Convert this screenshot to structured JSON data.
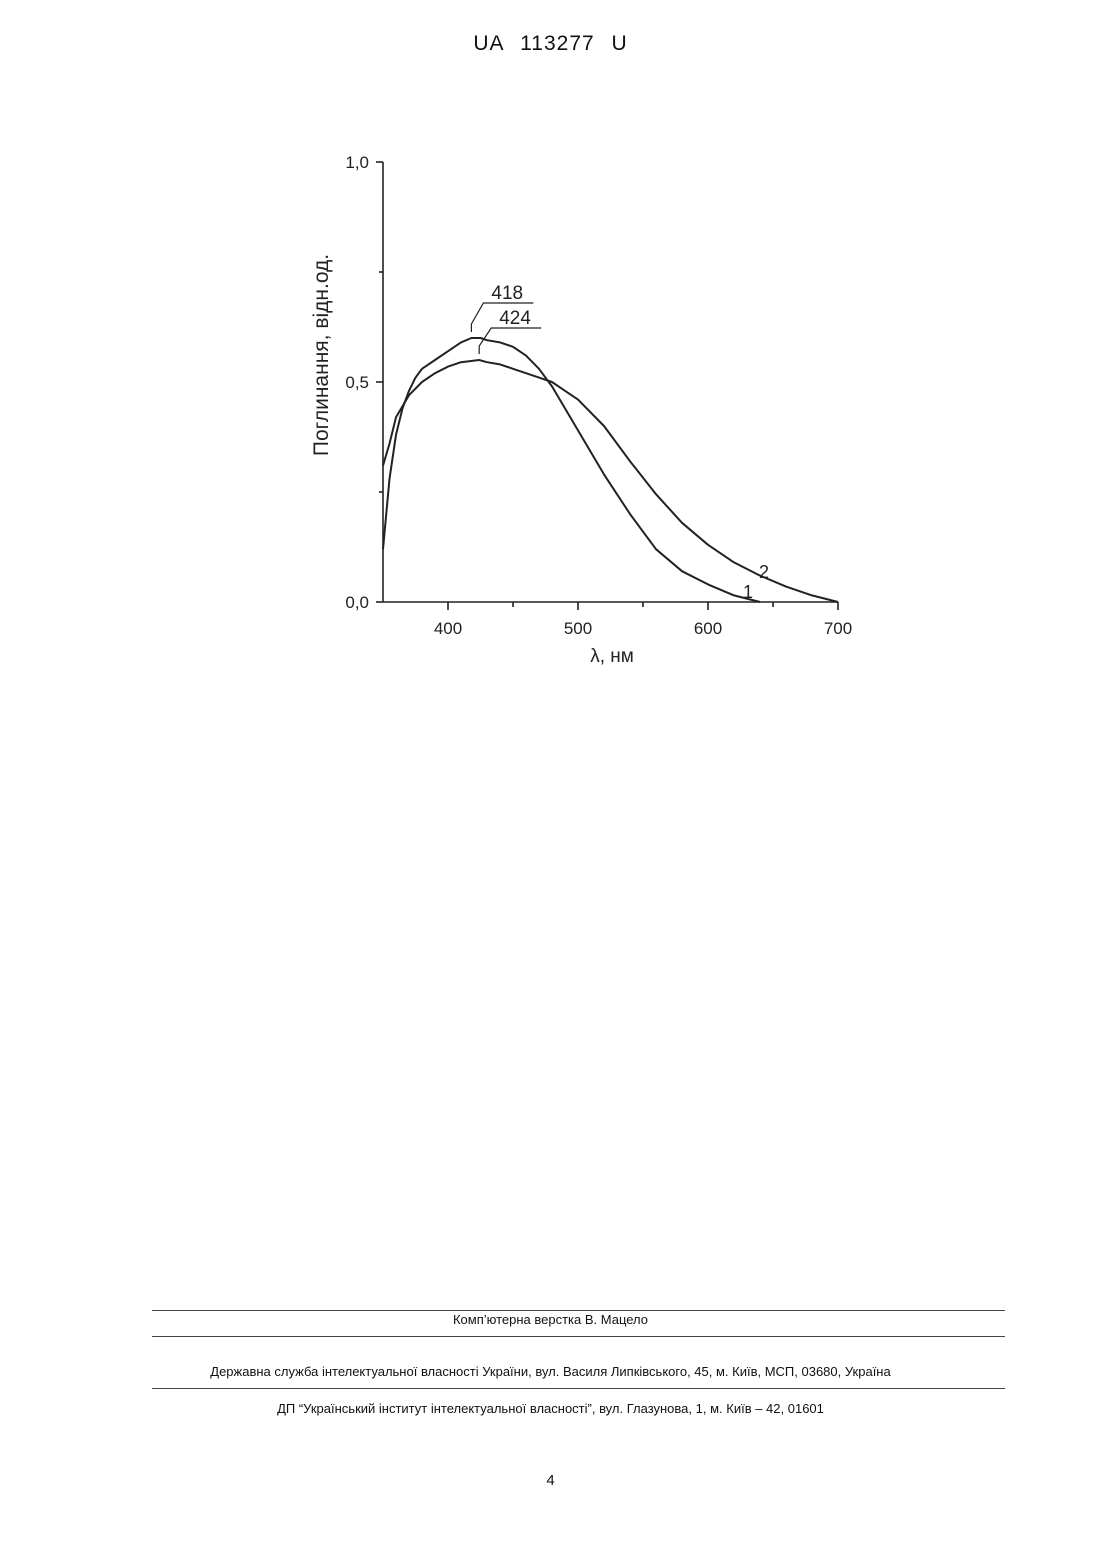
{
  "header": {
    "doc_id": "UA   113277   U"
  },
  "chart_data": {
    "type": "line",
    "xlabel": "λ, нм",
    "ylabel": "Поглинання, відн.од.",
    "xlim": [
      350,
      700
    ],
    "ylim": [
      0.0,
      1.0
    ],
    "xticks": [
      400,
      500,
      600,
      700
    ],
    "xtick_labels": [
      "400",
      "500",
      "600",
      "700"
    ],
    "yticks": [
      0.0,
      0.5,
      1.0
    ],
    "ytick_labels": [
      "0,0",
      "0,5",
      "1,0"
    ],
    "series": [
      {
        "name": "1",
        "x": [
          350,
          355,
          360,
          365,
          370,
          375,
          380,
          390,
          400,
          410,
          418,
          425,
          430,
          440,
          450,
          460,
          470,
          480,
          490,
          500,
          520,
          540,
          560,
          580,
          600,
          620,
          640
        ],
        "y": [
          0.12,
          0.28,
          0.38,
          0.44,
          0.48,
          0.51,
          0.53,
          0.55,
          0.57,
          0.59,
          0.6,
          0.6,
          0.595,
          0.59,
          0.58,
          0.56,
          0.53,
          0.49,
          0.44,
          0.39,
          0.29,
          0.2,
          0.12,
          0.07,
          0.04,
          0.015,
          0.0
        ]
      },
      {
        "name": "2",
        "x": [
          350,
          355,
          360,
          370,
          380,
          390,
          400,
          410,
          424,
          430,
          440,
          450,
          460,
          470,
          480,
          490,
          500,
          520,
          540,
          560,
          580,
          600,
          620,
          640,
          660,
          680,
          700
        ],
        "y": [
          0.31,
          0.36,
          0.42,
          0.47,
          0.5,
          0.52,
          0.535,
          0.545,
          0.55,
          0.545,
          0.54,
          0.53,
          0.52,
          0.51,
          0.5,
          0.48,
          0.46,
          0.4,
          0.32,
          0.245,
          0.18,
          0.13,
          0.09,
          0.06,
          0.035,
          0.015,
          0.0
        ]
      }
    ],
    "annotations": [
      {
        "text": "418",
        "x": 418,
        "series": "1"
      },
      {
        "text": "424",
        "x": 424,
        "series": "2"
      }
    ],
    "grid": false
  },
  "footer": {
    "typesetter": "Комп’ютерна верстка В. Мацело",
    "agency": "Державна служба інтелектуальної власності України, вул. Василя Липківського, 45, м. Київ, МСП, 03680, Україна",
    "institute": "ДП “Український інститут інтелектуальної власності”, вул. Глазунова, 1, м. Київ – 42, 01601"
  },
  "page_number": "4"
}
